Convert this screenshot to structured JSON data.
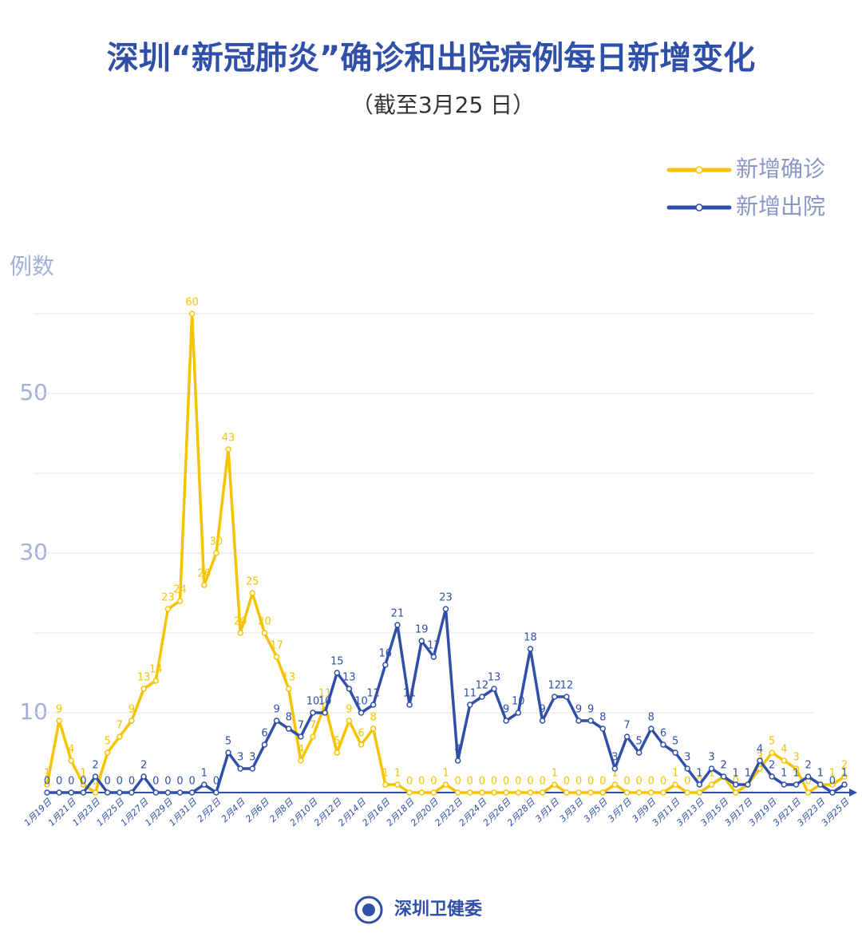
{
  "chart_data": {
    "type": "line",
    "title": "深圳“新冠肺炎”确诊和出院病例每日新增变化",
    "subtitle": "（截至3月25 日）",
    "y_label": "例数",
    "footer": "深圳卫健委",
    "categories": [
      "1月19日",
      null,
      "1月21日",
      null,
      "1月23日",
      null,
      "1月25日",
      null,
      "1月27日",
      null,
      "1月29日",
      null,
      "1月31日",
      null,
      "2月2日",
      null,
      "2月4日",
      null,
      "2月6日",
      null,
      "2月8日",
      null,
      "2月10日",
      null,
      "2月12日",
      null,
      "2月14日",
      null,
      "2月16日",
      null,
      "2月18日",
      null,
      "2月20日",
      null,
      "2月22日",
      null,
      "2月24日",
      null,
      "2月26日",
      null,
      "2月28日",
      null,
      "3月1日",
      null,
      "3月3日",
      null,
      "3月5日",
      null,
      "3月7日",
      null,
      "3月9日",
      null,
      "3月11日",
      null,
      "3月13日",
      null,
      "3月15日",
      null,
      "3月17日",
      null,
      "3月19日",
      null,
      "3月21日",
      null,
      "3月23日",
      null,
      "3月25日"
    ],
    "series": [
      {
        "name": "新增确诊",
        "color": "#f5c400",
        "values": [
          1,
          9,
          4,
          1,
          0,
          5,
          7,
          9,
          13,
          14,
          23,
          24,
          60,
          26,
          30,
          43,
          20,
          25,
          20,
          17,
          13,
          4,
          7,
          11,
          5,
          9,
          6,
          8,
          1,
          1,
          0,
          0,
          0,
          1,
          0,
          0,
          0,
          0,
          0,
          0,
          0,
          0,
          1,
          0,
          0,
          0,
          0,
          1,
          0,
          0,
          0,
          0,
          1,
          0,
          0,
          1,
          2,
          0,
          1,
          3,
          5,
          4,
          3,
          0,
          1,
          1,
          2
        ]
      },
      {
        "name": "新增出院",
        "color": "#2f4fa8",
        "values": [
          0,
          0,
          0,
          0,
          2,
          0,
          0,
          0,
          2,
          0,
          0,
          0,
          0,
          1,
          0,
          5,
          3,
          3,
          6,
          9,
          8,
          7,
          10,
          10,
          15,
          13,
          10,
          11,
          16,
          21,
          11,
          19,
          17,
          23,
          4,
          11,
          12,
          13,
          9,
          10,
          18,
          9,
          12,
          12,
          9,
          9,
          8,
          3,
          7,
          5,
          8,
          6,
          5,
          3,
          1,
          3,
          2,
          1,
          1,
          4,
          2,
          1,
          1,
          2,
          1,
          0,
          1
        ]
      }
    ],
    "ylim": [
      0,
      60
    ],
    "yticks": [
      10,
      30,
      50
    ],
    "minor_yticks": [
      20,
      40,
      60
    ],
    "grid": true,
    "legend": "top-right"
  }
}
